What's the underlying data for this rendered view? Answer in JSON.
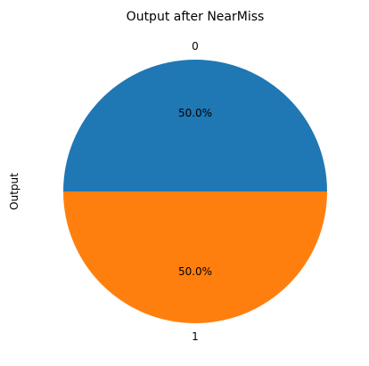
{
  "chart_data": {
    "type": "pie",
    "title": "Output after NearMiss",
    "ylabel": "Output",
    "categories": [
      "0",
      "1"
    ],
    "values": [
      50.0,
      50.0
    ],
    "percent_labels": [
      "50.0%",
      "50.0%"
    ],
    "colors": [
      "#1f77b4",
      "#ff7f0e"
    ],
    "start_angle_deg": 0,
    "direction": "clockwise",
    "legend": "none"
  }
}
